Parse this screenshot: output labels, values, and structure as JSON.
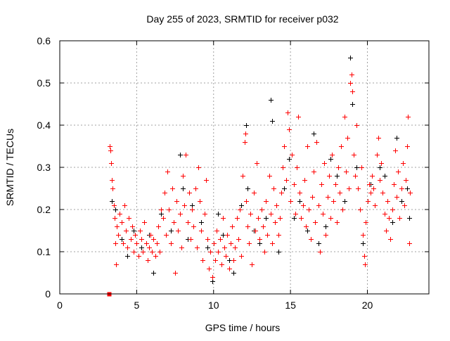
{
  "chart_data": {
    "type": "scatter",
    "title": "Day 255 of 2023, SRMTID for receiver p032",
    "xlabel": "GPS time / hours",
    "ylabel": "SRMTID / TECUs",
    "xlim": [
      0,
      24
    ],
    "ylim": [
      0,
      0.6
    ],
    "xticks": [
      "0",
      "5",
      "10",
      "15",
      "20"
    ],
    "xtick_values": [
      0,
      5,
      10,
      15,
      20
    ],
    "yticks": [
      "0",
      "0.1",
      "0.2",
      "0.3",
      "0.4",
      "0.5",
      "0.6"
    ],
    "ytick_values": [
      0,
      0.1,
      0.2,
      0.3,
      0.4,
      0.5,
      0.6
    ],
    "grid": true,
    "series": [
      {
        "name": "black",
        "color": "#000000",
        "marker": "+",
        "points": [
          [
            3.4,
            0.22
          ],
          [
            3.6,
            0.2
          ],
          [
            4.0,
            0.13
          ],
          [
            4.4,
            0.09
          ],
          [
            4.8,
            0.15
          ],
          [
            5.3,
            0.11
          ],
          [
            5.8,
            0.14
          ],
          [
            6.1,
            0.05
          ],
          [
            6.6,
            0.19
          ],
          [
            7.2,
            0.15
          ],
          [
            7.8,
            0.33
          ],
          [
            8.0,
            0.25
          ],
          [
            8.3,
            0.13
          ],
          [
            8.6,
            0.21
          ],
          [
            9.2,
            0.17
          ],
          [
            9.6,
            0.11
          ],
          [
            9.9,
            0.03
          ],
          [
            10.3,
            0.19
          ],
          [
            10.6,
            0.14
          ],
          [
            11.0,
            0.08
          ],
          [
            11.3,
            0.05
          ],
          [
            11.8,
            0.21
          ],
          [
            12.1,
            0.4
          ],
          [
            12.2,
            0.25
          ],
          [
            12.6,
            0.15
          ],
          [
            13.0,
            0.12
          ],
          [
            13.4,
            0.18
          ],
          [
            13.7,
            0.46
          ],
          [
            13.8,
            0.41
          ],
          [
            14.2,
            0.1
          ],
          [
            14.6,
            0.25
          ],
          [
            14.9,
            0.32
          ],
          [
            15.2,
            0.18
          ],
          [
            15.6,
            0.22
          ],
          [
            16.1,
            0.15
          ],
          [
            16.5,
            0.38
          ],
          [
            16.8,
            0.12
          ],
          [
            17.3,
            0.16
          ],
          [
            17.6,
            0.32
          ],
          [
            18.0,
            0.28
          ],
          [
            18.5,
            0.22
          ],
          [
            18.9,
            0.56
          ],
          [
            19.0,
            0.45
          ],
          [
            19.3,
            0.3
          ],
          [
            19.7,
            0.12
          ],
          [
            20.2,
            0.26
          ],
          [
            20.8,
            0.3
          ],
          [
            21.1,
            0.28
          ],
          [
            21.6,
            0.17
          ],
          [
            21.9,
            0.37
          ],
          [
            22.2,
            0.22
          ],
          [
            22.6,
            0.25
          ],
          [
            22.7,
            0.18
          ]
        ]
      },
      {
        "name": "red",
        "color": "#ff0000",
        "marker": "+",
        "points": [
          [
            3.2,
            0.0
          ],
          [
            3.25,
            0.35
          ],
          [
            3.3,
            0.34
          ],
          [
            3.35,
            0.31
          ],
          [
            3.4,
            0.27
          ],
          [
            3.45,
            0.25
          ],
          [
            3.5,
            0.21
          ],
          [
            3.55,
            0.18
          ],
          [
            3.6,
            0.12
          ],
          [
            3.65,
            0.07
          ],
          [
            3.7,
            0.16
          ],
          [
            3.8,
            0.14
          ],
          [
            3.9,
            0.19
          ],
          [
            4.0,
            0.17
          ],
          [
            4.1,
            0.12
          ],
          [
            4.2,
            0.21
          ],
          [
            4.3,
            0.15
          ],
          [
            4.4,
            0.11
          ],
          [
            4.5,
            0.18
          ],
          [
            4.6,
            0.13
          ],
          [
            4.7,
            0.16
          ],
          [
            4.8,
            0.1
          ],
          [
            4.9,
            0.14
          ],
          [
            5.0,
            0.12
          ],
          [
            5.1,
            0.09
          ],
          [
            5.2,
            0.15
          ],
          [
            5.3,
            0.13
          ],
          [
            5.4,
            0.1
          ],
          [
            5.5,
            0.17
          ],
          [
            5.6,
            0.12
          ],
          [
            5.7,
            0.08
          ],
          [
            5.8,
            0.11
          ],
          [
            5.9,
            0.14
          ],
          [
            6.0,
            0.1
          ],
          [
            6.1,
            0.13
          ],
          [
            6.2,
            0.09
          ],
          [
            6.3,
            0.12
          ],
          [
            6.4,
            0.16
          ],
          [
            6.5,
            0.1
          ],
          [
            6.6,
            0.2
          ],
          [
            6.7,
            0.18
          ],
          [
            6.8,
            0.24
          ],
          [
            6.9,
            0.14
          ],
          [
            7.0,
            0.29
          ],
          [
            7.1,
            0.2
          ],
          [
            7.2,
            0.12
          ],
          [
            7.3,
            0.25
          ],
          [
            7.4,
            0.17
          ],
          [
            7.5,
            0.05
          ],
          [
            7.6,
            0.22
          ],
          [
            7.7,
            0.15
          ],
          [
            7.8,
            0.19
          ],
          [
            7.9,
            0.11
          ],
          [
            8.0,
            0.28
          ],
          [
            8.1,
            0.21
          ],
          [
            8.2,
            0.33
          ],
          [
            8.3,
            0.17
          ],
          [
            8.4,
            0.24
          ],
          [
            8.5,
            0.13
          ],
          [
            8.6,
            0.2
          ],
          [
            8.7,
            0.16
          ],
          [
            8.8,
            0.25
          ],
          [
            8.9,
            0.11
          ],
          [
            9.0,
            0.3
          ],
          [
            9.1,
            0.22
          ],
          [
            9.2,
            0.15
          ],
          [
            9.3,
            0.08
          ],
          [
            9.4,
            0.19
          ],
          [
            9.5,
            0.27
          ],
          [
            9.6,
            0.13
          ],
          [
            9.7,
            0.06
          ],
          [
            9.8,
            0.1
          ],
          [
            9.9,
            0.04
          ],
          [
            10.0,
            0.12
          ],
          [
            10.1,
            0.08
          ],
          [
            10.2,
            0.15
          ],
          [
            10.3,
            0.1
          ],
          [
            10.4,
            0.13
          ],
          [
            10.5,
            0.07
          ],
          [
            10.6,
            0.18
          ],
          [
            10.7,
            0.11
          ],
          [
            10.8,
            0.09
          ],
          [
            10.9,
            0.14
          ],
          [
            11.0,
            0.06
          ],
          [
            11.1,
            0.12
          ],
          [
            11.2,
            0.16
          ],
          [
            11.3,
            0.08
          ],
          [
            11.4,
            0.11
          ],
          [
            11.5,
            0.18
          ],
          [
            11.6,
            0.13
          ],
          [
            11.7,
            0.2
          ],
          [
            11.8,
            0.09
          ],
          [
            11.9,
            0.28
          ],
          [
            12.0,
            0.36
          ],
          [
            12.05,
            0.38
          ],
          [
            12.1,
            0.22
          ],
          [
            12.2,
            0.16
          ],
          [
            12.3,
            0.12
          ],
          [
            12.4,
            0.19
          ],
          [
            12.5,
            0.07
          ],
          [
            12.6,
            0.24
          ],
          [
            12.7,
            0.15
          ],
          [
            12.8,
            0.31
          ],
          [
            12.9,
            0.18
          ],
          [
            13.0,
            0.13
          ],
          [
            13.1,
            0.2
          ],
          [
            13.2,
            0.16
          ],
          [
            13.3,
            0.1
          ],
          [
            13.4,
            0.22
          ],
          [
            13.5,
            0.14
          ],
          [
            13.6,
            0.28
          ],
          [
            13.7,
            0.19
          ],
          [
            13.8,
            0.12
          ],
          [
            13.9,
            0.25
          ],
          [
            14.0,
            0.17
          ],
          [
            14.1,
            0.21
          ],
          [
            14.2,
            0.14
          ],
          [
            14.3,
            0.18
          ],
          [
            14.4,
            0.24
          ],
          [
            14.5,
            0.3
          ],
          [
            14.6,
            0.35
          ],
          [
            14.7,
            0.27
          ],
          [
            14.8,
            0.43
          ],
          [
            14.9,
            0.39
          ],
          [
            15.0,
            0.22
          ],
          [
            15.1,
            0.33
          ],
          [
            15.2,
            0.26
          ],
          [
            15.3,
            0.19
          ],
          [
            15.4,
            0.3
          ],
          [
            15.5,
            0.42
          ],
          [
            15.6,
            0.24
          ],
          [
            15.7,
            0.18
          ],
          [
            15.8,
            0.21
          ],
          [
            15.9,
            0.27
          ],
          [
            16.0,
            0.16
          ],
          [
            16.1,
            0.35
          ],
          [
            16.2,
            0.2
          ],
          [
            16.3,
            0.13
          ],
          [
            16.4,
            0.23
          ],
          [
            16.5,
            0.29
          ],
          [
            16.6,
            0.17
          ],
          [
            16.7,
            0.36
          ],
          [
            16.8,
            0.21
          ],
          [
            16.9,
            0.1
          ],
          [
            17.0,
            0.26
          ],
          [
            17.1,
            0.19
          ],
          [
            17.2,
            0.31
          ],
          [
            17.3,
            0.14
          ],
          [
            17.4,
            0.23
          ],
          [
            17.5,
            0.28
          ],
          [
            17.6,
            0.18
          ],
          [
            17.7,
            0.33
          ],
          [
            17.8,
            0.22
          ],
          [
            17.9,
            0.26
          ],
          [
            18.0,
            0.17
          ],
          [
            18.1,
            0.3
          ],
          [
            18.2,
            0.24
          ],
          [
            18.3,
            0.35
          ],
          [
            18.4,
            0.2
          ],
          [
            18.5,
            0.42
          ],
          [
            18.6,
            0.29
          ],
          [
            18.7,
            0.37
          ],
          [
            18.8,
            0.25
          ],
          [
            18.9,
            0.5
          ],
          [
            18.95,
            0.52
          ],
          [
            19.0,
            0.48
          ],
          [
            19.1,
            0.33
          ],
          [
            19.2,
            0.28
          ],
          [
            19.3,
            0.4
          ],
          [
            19.4,
            0.25
          ],
          [
            19.5,
            0.2
          ],
          [
            19.6,
            0.3
          ],
          [
            19.7,
            0.14
          ],
          [
            19.8,
            0.09
          ],
          [
            19.85,
            0.07
          ],
          [
            19.9,
            0.17
          ],
          [
            20.0,
            0.22
          ],
          [
            20.1,
            0.26
          ],
          [
            20.2,
            0.24
          ],
          [
            20.3,
            0.28
          ],
          [
            20.4,
            0.25
          ],
          [
            20.5,
            0.21
          ],
          [
            20.6,
            0.33
          ],
          [
            20.7,
            0.37
          ],
          [
            20.8,
            0.27
          ],
          [
            20.9,
            0.31
          ],
          [
            21.0,
            0.24
          ],
          [
            21.1,
            0.19
          ],
          [
            21.2,
            0.15
          ],
          [
            21.3,
            0.22
          ],
          [
            21.4,
            0.18
          ],
          [
            21.5,
            0.13
          ],
          [
            21.6,
            0.2
          ],
          [
            21.7,
            0.26
          ],
          [
            21.8,
            0.34
          ],
          [
            21.9,
            0.23
          ],
          [
            22.0,
            0.29
          ],
          [
            22.1,
            0.18
          ],
          [
            22.2,
            0.25
          ],
          [
            22.3,
            0.31
          ],
          [
            22.4,
            0.21
          ],
          [
            22.5,
            0.27
          ],
          [
            22.6,
            0.35
          ],
          [
            22.65,
            0.42
          ],
          [
            22.7,
            0.12
          ],
          [
            22.75,
            0.24
          ]
        ]
      }
    ]
  }
}
